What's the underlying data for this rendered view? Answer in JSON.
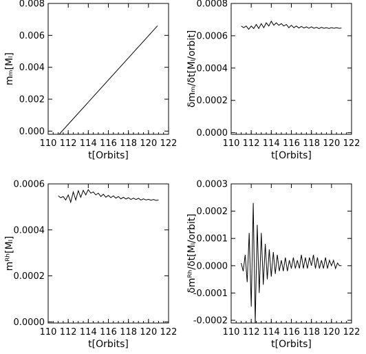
{
  "chart_data": [
    {
      "type": "line",
      "xlabel": "t[Orbits]",
      "ylabel": "mₘ[Mₗ]",
      "xlim": [
        110,
        122
      ],
      "ylim": [
        -0.0002,
        0.008
      ],
      "xticks": [
        "110",
        "112",
        "114",
        "116",
        "118",
        "120",
        "122"
      ],
      "yticks": [
        "0.000",
        "0.002",
        "0.004",
        "0.006",
        "0.008"
      ],
      "series": [
        {
          "x": [
            111.1,
            120.9
          ],
          "y": [
            -0.0002,
            0.0066
          ]
        }
      ]
    },
    {
      "type": "line",
      "xlabel": "t[Orbits]",
      "ylabel": "δmₘ/δt[Mₗ/orbit]",
      "xlim": [
        110,
        122
      ],
      "ylim": [
        -1e-05,
        0.0008
      ],
      "xticks": [
        "110",
        "112",
        "114",
        "116",
        "118",
        "120",
        "122"
      ],
      "yticks": [
        "0.0000",
        "0.0002",
        "0.0004",
        "0.0006",
        "0.0008"
      ],
      "series": [
        {
          "x": [
            111.0,
            111.25,
            111.5,
            111.75,
            112.0,
            112.25,
            112.5,
            112.75,
            113.0,
            113.25,
            113.5,
            113.75,
            114.0,
            114.25,
            114.5,
            114.75,
            115.0,
            115.25,
            115.5,
            115.75,
            116.0,
            116.25,
            116.5,
            116.75,
            117.0,
            117.25,
            117.5,
            117.75,
            118.0,
            118.25,
            118.5,
            118.75,
            119.0,
            119.25,
            119.5,
            119.75,
            120.0,
            120.25,
            120.5,
            120.75,
            121.0
          ],
          "y": [
            0.00066,
            0.00065,
            0.00066,
            0.00064,
            0.00066,
            0.000645,
            0.00067,
            0.000645,
            0.000675,
            0.00065,
            0.00068,
            0.00066,
            0.00069,
            0.000665,
            0.00068,
            0.000665,
            0.000675,
            0.00066,
            0.00067,
            0.00065,
            0.000665,
            0.00065,
            0.00066,
            0.000648,
            0.000658,
            0.000648,
            0.000655,
            0.000646,
            0.000655,
            0.000646,
            0.000652,
            0.000645,
            0.000652,
            0.000646,
            0.00065,
            0.000645,
            0.00065,
            0.000646,
            0.00065,
            0.000646,
            0.000648
          ]
        }
      ]
    },
    {
      "type": "line",
      "xlabel": "t[Orbits]",
      "ylabel": "mᴿʰ[Mₗ]",
      "xlim": [
        110,
        122
      ],
      "ylim": [
        -5e-06,
        0.0006
      ],
      "xticks": [
        "110",
        "112",
        "114",
        "116",
        "118",
        "120",
        "122"
      ],
      "yticks": [
        "0.0000",
        "0.0002",
        "0.0004",
        "0.0006"
      ],
      "series": [
        {
          "x": [
            111.0,
            111.25,
            111.5,
            111.75,
            112.0,
            112.25,
            112.5,
            112.75,
            113.0,
            113.25,
            113.5,
            113.75,
            114.0,
            114.25,
            114.5,
            114.75,
            115.0,
            115.25,
            115.5,
            115.75,
            116.0,
            116.25,
            116.5,
            116.75,
            117.0,
            117.25,
            117.5,
            117.75,
            118.0,
            118.25,
            118.5,
            118.75,
            119.0,
            119.25,
            119.5,
            119.75,
            120.0,
            120.25,
            120.5,
            120.75,
            121.0
          ],
          "y": [
            0.000548,
            0.00054,
            0.000545,
            0.00053,
            0.000552,
            0.00052,
            0.000565,
            0.00053,
            0.00057,
            0.000542,
            0.000572,
            0.000552,
            0.000575,
            0.00056,
            0.000565,
            0.000552,
            0.00056,
            0.000545,
            0.000555,
            0.000542,
            0.00055,
            0.00054,
            0.000548,
            0.000538,
            0.000545,
            0.000535,
            0.000542,
            0.000534,
            0.00054,
            0.000532,
            0.000538,
            0.000532,
            0.000537,
            0.00053,
            0.000535,
            0.00053,
            0.000533,
            0.000529,
            0.000532,
            0.000528,
            0.00053
          ]
        }
      ]
    },
    {
      "type": "line",
      "xlabel": "t[Orbits]",
      "ylabel": "δmᴿʰ/δt[Mₗ/orbit]",
      "xlim": [
        110,
        122
      ],
      "ylim": [
        -0.00021,
        0.0003
      ],
      "xticks": [
        "110",
        "112",
        "114",
        "116",
        "118",
        "120",
        "122"
      ],
      "yticks": [
        "-0.0002",
        "-0.0001",
        "0.0000",
        "0.0001",
        "0.0002",
        "0.0003"
      ],
      "series": [
        {
          "x": [
            111.0,
            111.2,
            111.4,
            111.6,
            111.8,
            112.0,
            112.2,
            112.4,
            112.6,
            112.8,
            113.0,
            113.2,
            113.4,
            113.6,
            113.8,
            114.0,
            114.2,
            114.4,
            114.6,
            114.8,
            115.0,
            115.2,
            115.4,
            115.6,
            115.8,
            116.0,
            116.2,
            116.4,
            116.6,
            116.8,
            117.0,
            117.2,
            117.4,
            117.6,
            117.8,
            118.0,
            118.2,
            118.4,
            118.6,
            118.8,
            119.0,
            119.2,
            119.4,
            119.6,
            119.8,
            120.0,
            120.2,
            120.4,
            120.6,
            120.8,
            121.0
          ],
          "y": [
            1e-05,
            -2e-05,
            4e-05,
            -6e-05,
            0.00012,
            -0.00015,
            0.00023,
            -0.00021,
            0.00015,
            -0.0001,
            0.00012,
            -7e-05,
            8e-05,
            -5e-05,
            6e-05,
            -4e-05,
            5e-05,
            -3e-05,
            4e-05,
            -2e-05,
            2e-05,
            -2e-05,
            3e-05,
            -2e-05,
            2e-05,
            -1e-05,
            3e-05,
            -1e-05,
            2e-05,
            -1e-05,
            4e-05,
            -1e-05,
            3e-05,
            -1e-05,
            3e-05,
            0.0,
            4e-05,
            -1e-05,
            3e-05,
            -1e-05,
            2e-05,
            -1e-05,
            3e-05,
            -1e-05,
            2e-05,
            0.0,
            2e-05,
            -1e-05,
            1e-05,
            0.0,
            0.0
          ]
        }
      ]
    }
  ]
}
